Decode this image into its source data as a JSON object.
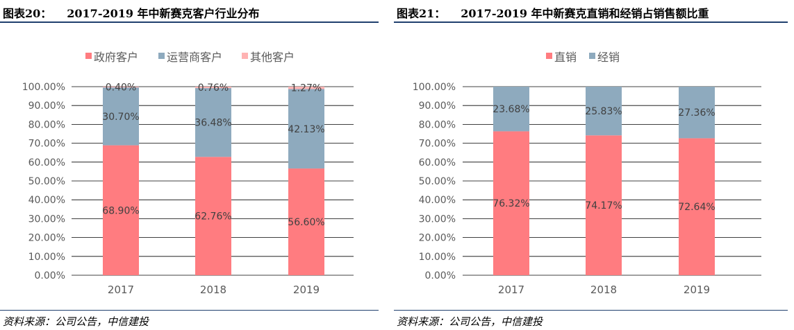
{
  "figures": [
    {
      "title_label": "图表20：",
      "title_text": "2017-2019 年中新赛克客户行业分布",
      "source": "资料来源：公司公告，中信建投"
    },
    {
      "title_label": "图表21：",
      "title_text": "2017-2019 年中新赛克直销和经销占销售额比重",
      "source": "资料来源：公司公告，中信建投"
    }
  ],
  "chart_data": [
    {
      "type": "bar",
      "stacked": true,
      "title": "2017-2019 年中新赛克客户行业分布",
      "categories": [
        "2017",
        "2018",
        "2019"
      ],
      "series": [
        {
          "name": "政府客户",
          "color": "#ff7c80",
          "values": [
            68.9,
            62.76,
            56.6
          ],
          "labels": [
            "68.90%",
            "62.76%",
            "56.60%"
          ]
        },
        {
          "name": "运营商客户",
          "color": "#8eaabe",
          "values": [
            30.7,
            36.48,
            42.13
          ],
          "labels": [
            "30.70%",
            "36.48%",
            "42.13%"
          ]
        },
        {
          "name": "其他客户",
          "color": "#ffb3b3",
          "values": [
            0.4,
            0.76,
            1.27
          ],
          "labels": [
            "0.40%",
            "0.76%",
            "1.27%"
          ]
        }
      ],
      "ylim": [
        0,
        100
      ],
      "yticks": [
        "0.00%",
        "10.00%",
        "20.00%",
        "30.00%",
        "40.00%",
        "50.00%",
        "60.00%",
        "70.00%",
        "80.00%",
        "90.00%",
        "100.00%"
      ],
      "legend_position": "top-center"
    },
    {
      "type": "bar",
      "stacked": true,
      "title": "2017-2019 年中新赛克直销和经销占销售额比重",
      "categories": [
        "2017",
        "2018",
        "2019"
      ],
      "series": [
        {
          "name": "直销",
          "color": "#ff7c80",
          "values": [
            76.32,
            74.17,
            72.64
          ],
          "labels": [
            "76.32%",
            "74.17%",
            "72.64%"
          ]
        },
        {
          "name": "经销",
          "color": "#8eaabe",
          "values": [
            23.68,
            25.83,
            27.36
          ],
          "labels": [
            "23.68%",
            "25.83%",
            "27.36%"
          ]
        }
      ],
      "ylim": [
        0,
        100
      ],
      "yticks": [
        "0.00%",
        "10.00%",
        "20.00%",
        "30.00%",
        "40.00%",
        "50.00%",
        "60.00%",
        "70.00%",
        "80.00%",
        "90.00%",
        "100.00%"
      ],
      "legend_position": "top-center"
    }
  ]
}
